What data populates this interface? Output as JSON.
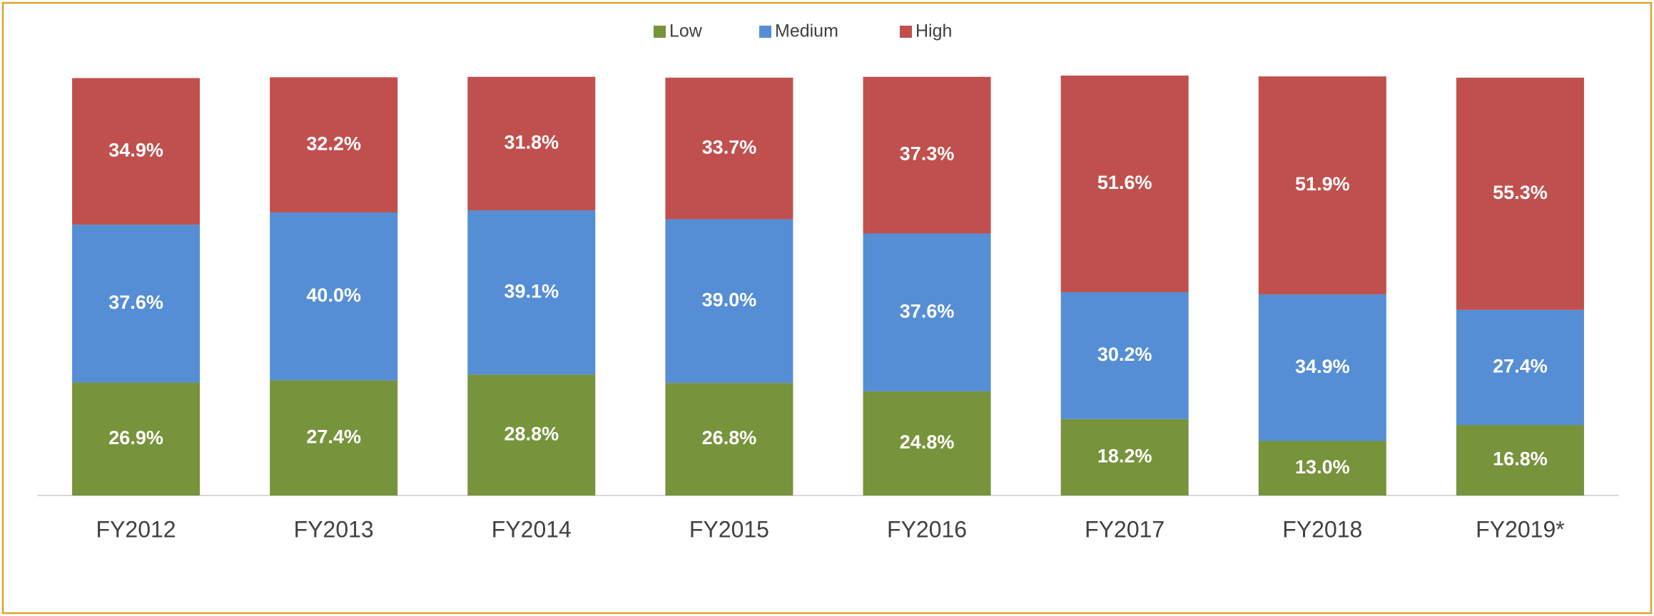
{
  "chart_data": {
    "type": "stacked_bar",
    "categories": [
      "FY2012",
      "FY2013",
      "FY2014",
      "FY2015",
      "FY2016",
      "FY2017",
      "FY2018",
      "FY2019*"
    ],
    "series": [
      {
        "name": "Low",
        "color": "#77933c",
        "values": [
          26.9,
          27.4,
          28.8,
          26.8,
          24.8,
          18.2,
          13.0,
          16.8
        ],
        "value_labels": [
          "26.9%",
          "27.4%",
          "28.8%",
          "26.8%",
          "24.8%",
          "18.2%",
          "13.0%",
          "16.8%"
        ]
      },
      {
        "name": "Medium",
        "color": "#558ed5",
        "values": [
          37.6,
          40.0,
          39.1,
          39.0,
          37.6,
          30.2,
          34.9,
          27.4
        ],
        "value_labels": [
          "37.6%",
          "40.0%",
          "39.1%",
          "39.0%",
          "37.6%",
          "30.2%",
          "34.9%",
          "27.4%"
        ]
      },
      {
        "name": "High",
        "color": "#c0504d",
        "values": [
          34.9,
          32.2,
          31.8,
          33.7,
          37.3,
          51.6,
          51.9,
          55.3
        ],
        "value_labels": [
          "34.9%",
          "32.2%",
          "31.8%",
          "33.7%",
          "37.3%",
          "51.6%",
          "51.9%",
          "55.3%"
        ]
      }
    ],
    "ylim": [
      0,
      100
    ]
  }
}
